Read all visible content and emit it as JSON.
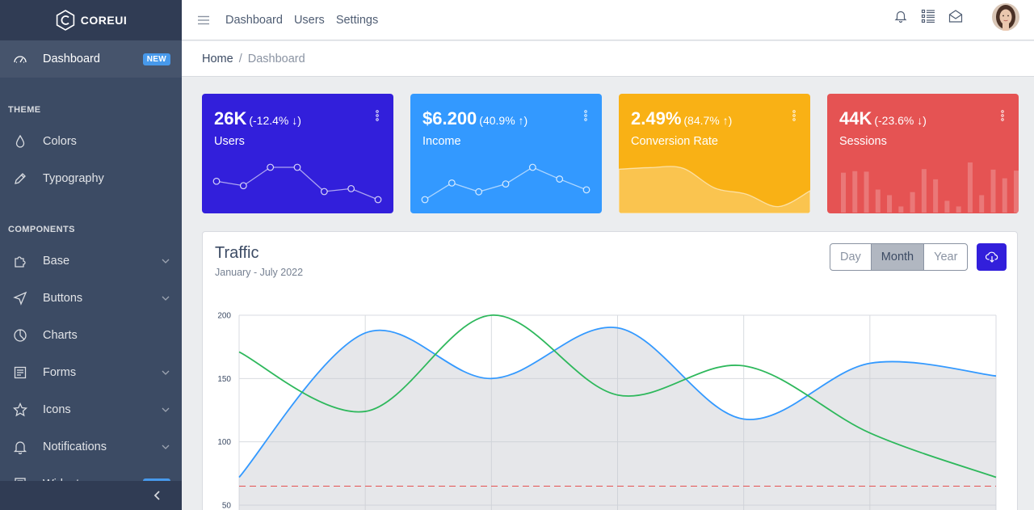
{
  "brand": {
    "name": "COREUI"
  },
  "sidebar": {
    "active": {
      "label": "Dashboard",
      "badge": "NEW",
      "icon": "speedometer-icon"
    },
    "sections": [
      {
        "title": "THEME",
        "items": [
          {
            "label": "Colors",
            "icon": "drop-icon",
            "chevron": false
          },
          {
            "label": "Typography",
            "icon": "pencil-icon",
            "chevron": false
          }
        ]
      },
      {
        "title": "COMPONENTS",
        "items": [
          {
            "label": "Base",
            "icon": "puzzle-icon",
            "chevron": true
          },
          {
            "label": "Buttons",
            "icon": "cursor-icon",
            "chevron": true
          },
          {
            "label": "Charts",
            "icon": "chart-pie-icon",
            "chevron": false
          },
          {
            "label": "Forms",
            "icon": "notes-icon",
            "chevron": true
          },
          {
            "label": "Icons",
            "icon": "star-icon",
            "chevron": true
          },
          {
            "label": "Notifications",
            "icon": "bell-icon",
            "chevron": true
          },
          {
            "label": "Widgets",
            "icon": "calculator-icon",
            "chevron": false,
            "badge": "NEW"
          }
        ]
      }
    ]
  },
  "header": {
    "nav": [
      "Dashboard",
      "Users",
      "Settings"
    ]
  },
  "breadcrumb": {
    "home": "Home",
    "separator": "/",
    "current": "Dashboard"
  },
  "widgets": [
    {
      "value": "26K",
      "change": "(-12.4% ↓)",
      "label": "Users",
      "color": "#321fdb",
      "chart": "line",
      "data": [
        65,
        59,
        84,
        84,
        51,
        55,
        40
      ]
    },
    {
      "value": "$6.200",
      "change": "(40.9% ↑)",
      "label": "Income",
      "color": "#3399ff",
      "chart": "line",
      "data": [
        1,
        18,
        9,
        17,
        34,
        22,
        11
      ]
    },
    {
      "value": "2.49%",
      "change": "(84.7% ↑)",
      "label": "Conversion Rate",
      "color": "#f9b115",
      "chart": "area",
      "data": [
        78,
        81,
        80,
        45,
        34,
        12,
        40
      ]
    },
    {
      "value": "44K",
      "change": "(-23.6% ↓)",
      "label": "Sessions",
      "color": "#e55353",
      "chart": "bar",
      "data": [
        78,
        81,
        80,
        45,
        34,
        12,
        40,
        85,
        65,
        23,
        12,
        98,
        34,
        84,
        67,
        82
      ]
    }
  ],
  "traffic": {
    "title": "Traffic",
    "subtitle": "January - July 2022",
    "buttons": [
      "Day",
      "Month",
      "Year"
    ],
    "active_button": "Month",
    "download_icon": "cloud-download-icon"
  },
  "chart_data": {
    "type": "line",
    "title": "",
    "xlabel": "",
    "ylabel": "",
    "ylim": [
      50,
      200
    ],
    "yticks": [
      50,
      100,
      150,
      200
    ],
    "grid": true,
    "x": [
      0,
      1,
      2,
      3,
      4,
      5,
      6
    ],
    "series": [
      {
        "values": [
          72,
          186,
          150,
          190,
          118,
          162,
          152
        ],
        "color": "#3399ff",
        "fill": true
      },
      {
        "values": [
          171,
          124,
          200,
          137,
          160,
          107,
          72
        ],
        "color": "#2eb85c",
        "fill": false
      },
      {
        "values": [
          65,
          65,
          65,
          65,
          65,
          65,
          65
        ],
        "color": "#e55353",
        "dashed": true
      }
    ]
  },
  "colors": {
    "sidebar": "#3c4b64",
    "primary": "#321fdb",
    "info": "#3399ff",
    "warning": "#f9b115",
    "danger": "#e55353",
    "success": "#2eb85c"
  }
}
